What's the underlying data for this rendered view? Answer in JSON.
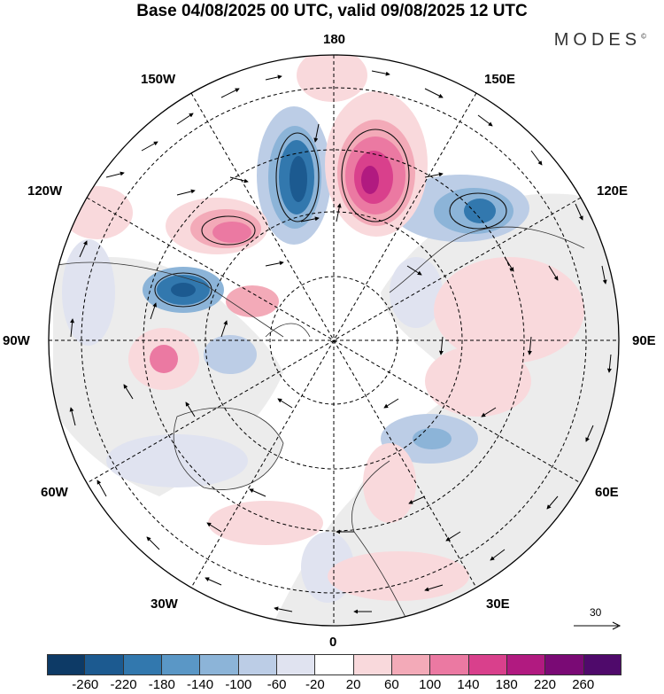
{
  "title": "Base 04/08/2025 00 UTC, valid 09/08/2025 12 UTC",
  "logo": "MODES",
  "longitude_labels": {
    "top": "180",
    "bottom": "0",
    "left": "90W",
    "right": "90E",
    "upper_left": "150W",
    "upper_right": "150E",
    "left_upper": "120W",
    "right_upper": "120E",
    "left_lower": "60W",
    "right_lower": "60E",
    "lower_left": "30W",
    "lower_right": "30E"
  },
  "reference_vector": "30",
  "colorbar": {
    "ticks": [
      "-260",
      "-220",
      "-180",
      "-140",
      "-100",
      "-60",
      "-20",
      "20",
      "60",
      "100",
      "140",
      "180",
      "220",
      "260"
    ],
    "colors": [
      "#0d3a66",
      "#1c5a90",
      "#3278ae",
      "#5a97c6",
      "#8cb4d8",
      "#bccde6",
      "#e0e3f0",
      "#ffffff",
      "#f9d9dc",
      "#f3aab8",
      "#eb79a2",
      "#d9408c",
      "#b11a80",
      "#7a0a75",
      "#4f0a6b"
    ]
  }
}
